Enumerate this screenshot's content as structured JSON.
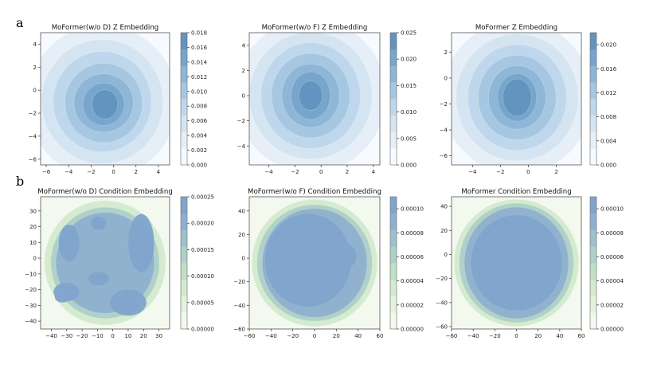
{
  "figure": {
    "panel_labels": [
      "a",
      "b"
    ]
  },
  "colormaps": {
    "blues": [
      "#f7fbff",
      "#e6eff8",
      "#d4e4f1",
      "#bfd7ec",
      "#a6c7e2",
      "#8db6d7",
      "#77a5cb",
      "#6394bf"
    ],
    "greens_blues": [
      "#f3f9ee",
      "#e4f2dc",
      "#d3eacd",
      "#bfe0c6",
      "#aed0c8",
      "#9ec0cc",
      "#8eb0d0",
      "#81a4cc"
    ]
  },
  "chart_data": [
    {
      "type": "heatmap",
      "title": "MoFormer(w/o D) Z Embedding",
      "xlim": [
        -6.5,
        5
      ],
      "ylim": [
        -6.5,
        5
      ],
      "xticks": [
        -6,
        -4,
        -2,
        0,
        2,
        4
      ],
      "yticks": [
        -6,
        -4,
        -2,
        0,
        2,
        4
      ],
      "colorbar": {
        "min": 0,
        "max": 0.018,
        "ticks": [
          "0.000",
          "0.002",
          "0.004",
          "0.006",
          "0.008",
          "0.010",
          "0.012",
          "0.014",
          "0.016",
          "0.018"
        ]
      },
      "colormap": "blues",
      "peak": [
        -1.0,
        -1.0
      ]
    },
    {
      "type": "heatmap",
      "title": "MoFormer(w/o F) Z Embedding",
      "xlim": [
        -5.5,
        4.5
      ],
      "ylim": [
        -5.5,
        5
      ],
      "xticks": [
        -4,
        -2,
        0,
        2,
        4
      ],
      "yticks": [
        -4,
        -2,
        0,
        2,
        4
      ],
      "colorbar": {
        "min": 0,
        "max": 0.025,
        "ticks": [
          "0.000",
          "0.005",
          "0.010",
          "0.015",
          "0.020",
          "0.025"
        ]
      },
      "colormap": "blues",
      "peak": [
        -0.8,
        0.0
      ]
    },
    {
      "type": "heatmap",
      "title": "MoFormer Z Embedding",
      "xlim": [
        -5.5,
        3.8
      ],
      "ylim": [
        -6.7,
        3.5
      ],
      "xticks": [
        -4,
        -2,
        0,
        2
      ],
      "yticks": [
        -6,
        -4,
        -2,
        0,
        2
      ],
      "colorbar": {
        "min": 0,
        "max": 0.022,
        "ticks": [
          "0.000",
          "0.004",
          "0.008",
          "0.012",
          "0.016",
          "0.020"
        ]
      },
      "colormap": "blues",
      "peak": [
        -0.8,
        -1.5
      ]
    },
    {
      "type": "heatmap",
      "title": "MoFormer(w/o D) Condition Embedding",
      "xlim": [
        -47,
        37
      ],
      "ylim": [
        -45,
        39
      ],
      "xticks": [
        -40,
        -30,
        -20,
        -10,
        0,
        10,
        20,
        30
      ],
      "yticks": [
        -40,
        -30,
        -20,
        -10,
        0,
        10,
        20,
        30
      ],
      "colorbar": {
        "min": 0,
        "max": 0.00025,
        "ticks": [
          "0.00000",
          "0.00005",
          "0.00010",
          "0.00015",
          "0.00020",
          "0.00025"
        ]
      },
      "colormap": "greens_blues",
      "peak": [
        -37,
        -12
      ]
    },
    {
      "type": "heatmap",
      "title": "MoFormer(w/o F) Condition Embedding",
      "xlim": [
        -60,
        60
      ],
      "ylim": [
        -60,
        52
      ],
      "xticks": [
        -60,
        -40,
        -20,
        0,
        20,
        40,
        60
      ],
      "yticks": [
        -60,
        -40,
        -20,
        0,
        20,
        40
      ],
      "colorbar": {
        "min": 0,
        "max": 0.00011,
        "ticks": [
          "0.00000",
          "0.00002",
          "0.00004",
          "0.00006",
          "0.00008",
          "0.00010"
        ]
      },
      "colormap": "greens_blues",
      "peak": [
        -10,
        10
      ]
    },
    {
      "type": "heatmap",
      "title": "MoFormer Condition Embedding",
      "xlim": [
        -60,
        60
      ],
      "ylim": [
        -62,
        48
      ],
      "xticks": [
        -60,
        -40,
        -20,
        0,
        20,
        40,
        60
      ],
      "yticks": [
        -60,
        -40,
        -20,
        0,
        20,
        40
      ],
      "colorbar": {
        "min": 0,
        "max": 0.00011,
        "ticks": [
          "0.00000",
          "0.00002",
          "0.00004",
          "0.00006",
          "0.00008",
          "0.00010"
        ]
      },
      "colormap": "greens_blues",
      "peak": [
        0,
        -5
      ]
    }
  ]
}
